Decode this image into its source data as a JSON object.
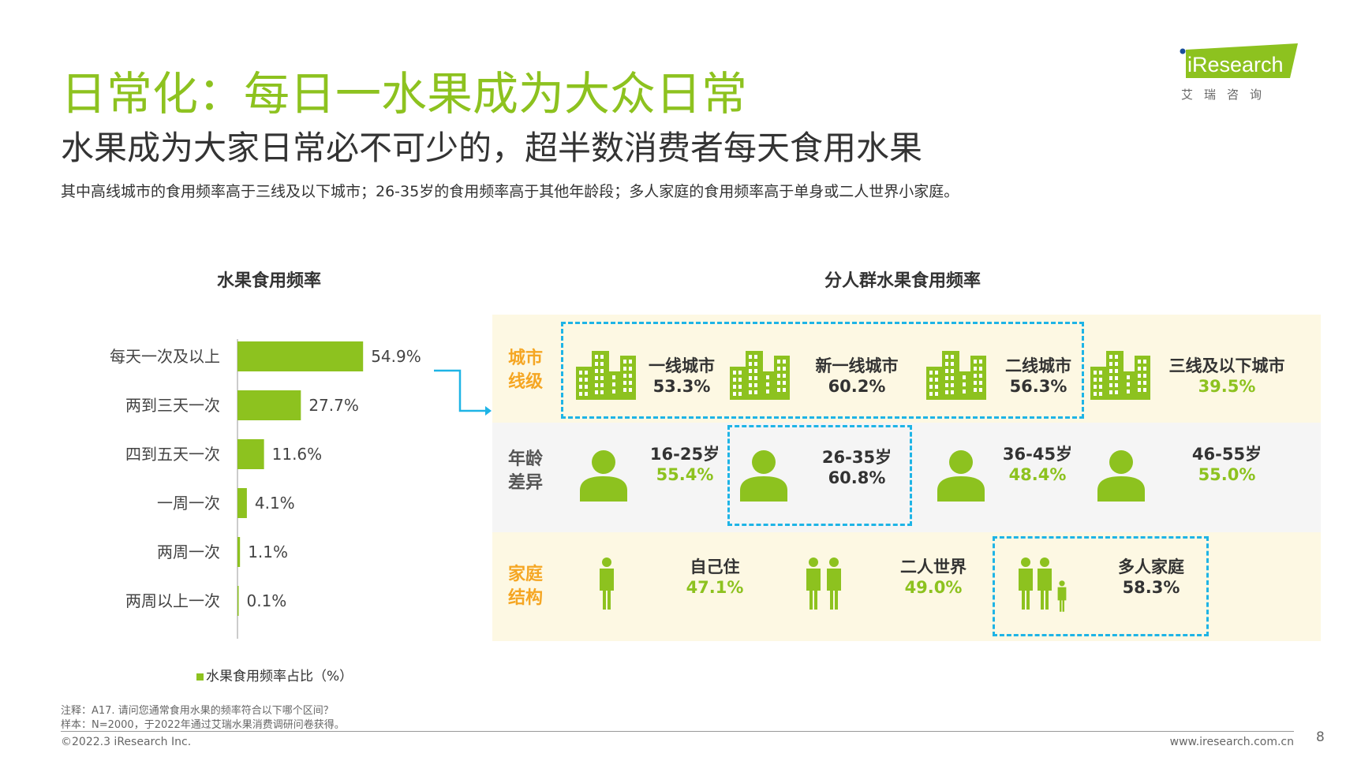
{
  "header": {
    "title": "日常化：每日一水果成为大众日常",
    "subtitle": "水果成为大家日常必不可少的，超半数消费者每天食用水果",
    "description": "其中高线城市的食用频率高于三线及以下城市；26-35岁的食用频率高于其他年龄段；多人家庭的食用频率高于单身或二人世界小家庭。"
  },
  "logo": {
    "text": "iResearch",
    "subtext": "艾 瑞 咨 询"
  },
  "colors": {
    "accent": "#8dc21f",
    "highlight": "#f5a623",
    "dash": "#1eb4e6"
  },
  "chart_data": {
    "type": "bar",
    "orientation": "horizontal",
    "title": "水果食用频率",
    "categories": [
      "每天一次及以上",
      "两到三天一次",
      "四到五天一次",
      "一周一次",
      "两周一次",
      "两周以上一次"
    ],
    "values": [
      54.9,
      27.7,
      11.6,
      4.1,
      1.1,
      0.1
    ],
    "labels": [
      "54.9%",
      "27.7%",
      "11.6%",
      "4.1%",
      "1.1%",
      "0.1%"
    ],
    "legend": "水果食用频率占比（%）",
    "legend_position": "bottom",
    "grid": false
  },
  "segments": {
    "title": "分人群水果食用频率",
    "rows": [
      {
        "label": [
          "城市",
          "线级"
        ],
        "icon": "building-icon",
        "items": [
          {
            "name": "一线城市",
            "value": "53.3%",
            "highlight": false
          },
          {
            "name": "新一线城市",
            "value": "60.2%",
            "highlight": false
          },
          {
            "name": "二线城市",
            "value": "56.3%",
            "highlight": false
          },
          {
            "name": "三线及以下城市",
            "value": "39.5%",
            "highlight": true
          }
        ]
      },
      {
        "label": [
          "年龄",
          "差异"
        ],
        "icon": "person-icon",
        "items": [
          {
            "name": "16-25岁",
            "value": "55.4%",
            "highlight": true
          },
          {
            "name": "26-35岁",
            "value": "60.8%",
            "highlight": false
          },
          {
            "name": "36-45岁",
            "value": "48.4%",
            "highlight": true
          },
          {
            "name": "46-55岁",
            "value": "55.0%",
            "highlight": true
          }
        ]
      },
      {
        "label": [
          "家庭",
          "结构"
        ],
        "icon": "family-icon",
        "items": [
          {
            "name": "自己住",
            "value": "47.1%",
            "highlight": true
          },
          {
            "name": "二人世界",
            "value": "49.0%",
            "highlight": true
          },
          {
            "name": "多人家庭",
            "value": "58.3%",
            "highlight": false
          }
        ]
      }
    ]
  },
  "footer": {
    "note": "注释：A17. 请问您通常食用水果的频率符合以下哪个区间？",
    "sample": "样本：N=2000，于2022年通过艾瑞水果消费调研问卷获得。",
    "copyright": "©2022.3 iResearch Inc.",
    "website": "www.iresearch.com.cn",
    "page": "8"
  }
}
